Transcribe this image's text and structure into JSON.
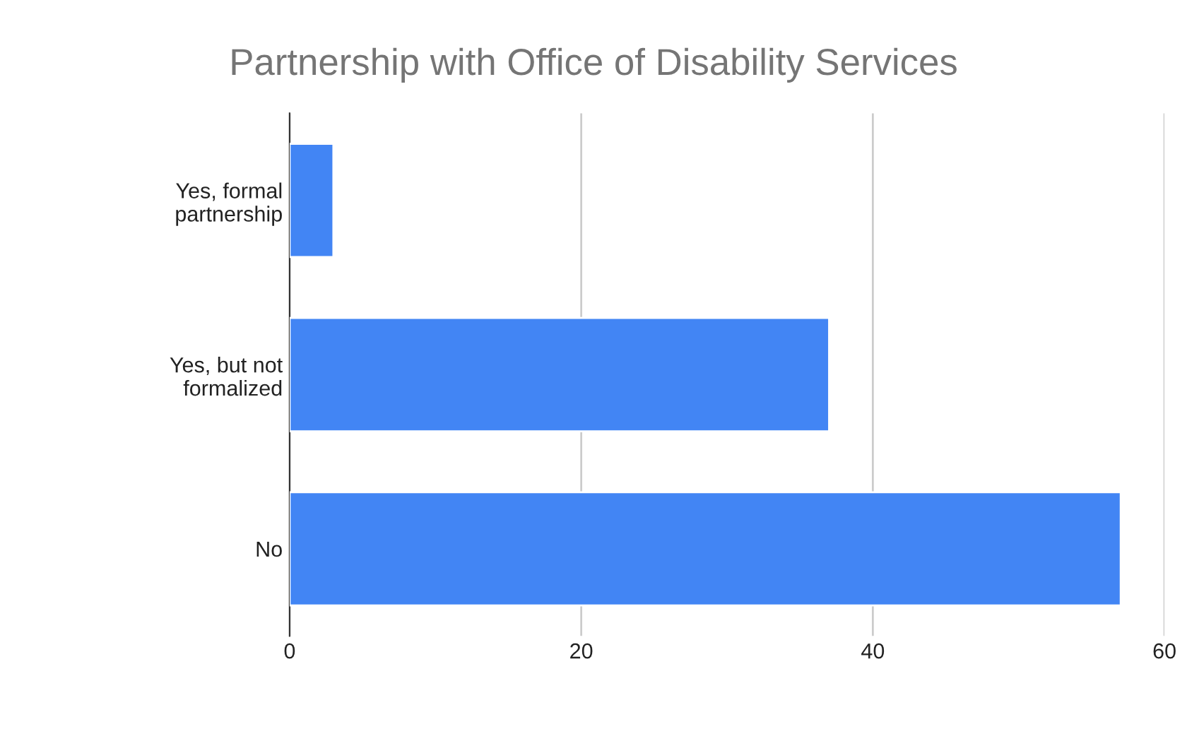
{
  "chart_data": {
    "type": "bar",
    "orientation": "horizontal",
    "title": "Partnership with Office of Disability Services",
    "categories": [
      "Yes, formal\npartnership",
      "Yes, but not\nformalized",
      "No"
    ],
    "values": [
      3,
      37,
      57
    ],
    "color": "#4285f4",
    "xlim": [
      0,
      60
    ],
    "xticks": [
      0,
      20,
      40,
      60
    ],
    "grid": "x",
    "legend": false
  }
}
